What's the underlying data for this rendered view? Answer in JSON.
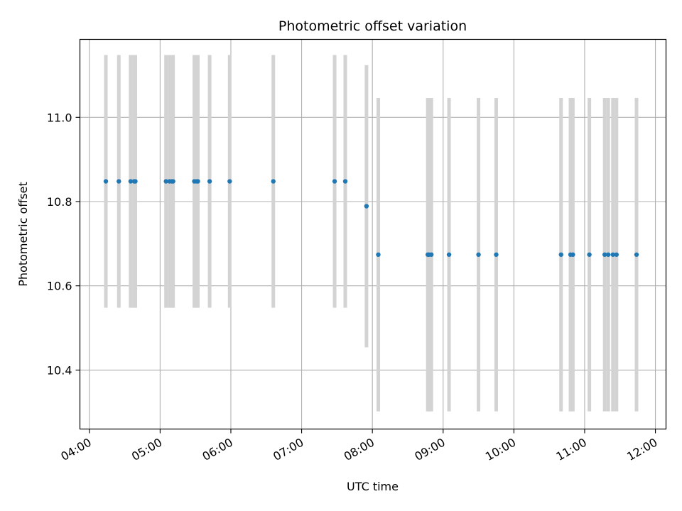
{
  "chart_data": {
    "type": "scatter",
    "title": "Photometric offset variation",
    "xlabel": "UTC time",
    "ylabel": "Photometric offset",
    "x_ticks": [
      "04:00",
      "05:00",
      "06:00",
      "07:00",
      "08:00",
      "09:00",
      "10:00",
      "11:00",
      "12:00"
    ],
    "y_ticks": [
      "10.4",
      "10.6",
      "10.8",
      "11.0"
    ],
    "xlim": [
      "03:52",
      "12:09"
    ],
    "ylim": [
      10.26,
      11.185
    ],
    "grid": true,
    "colors": {
      "points": "#1f77b4",
      "error_bars": "#d3d3d3",
      "grid": "#b0b0b0"
    },
    "points": [
      {
        "x": "04:14",
        "y": 10.848,
        "err": 0.3
      },
      {
        "x": "04:25",
        "y": 10.848,
        "err": 0.3
      },
      {
        "x": "04:35",
        "y": 10.848,
        "err": 0.3
      },
      {
        "x": "04:38",
        "y": 10.848,
        "err": 0.3
      },
      {
        "x": "04:39",
        "y": 10.848,
        "err": 0.3
      },
      {
        "x": "05:05",
        "y": 10.848,
        "err": 0.3
      },
      {
        "x": "05:08",
        "y": 10.848,
        "err": 0.3
      },
      {
        "x": "05:10",
        "y": 10.848,
        "err": 0.3
      },
      {
        "x": "05:11",
        "y": 10.848,
        "err": 0.3
      },
      {
        "x": "05:29",
        "y": 10.848,
        "err": 0.3
      },
      {
        "x": "05:31",
        "y": 10.848,
        "err": 0.3
      },
      {
        "x": "05:32",
        "y": 10.848,
        "err": 0.3
      },
      {
        "x": "05:42",
        "y": 10.848,
        "err": 0.3
      },
      {
        "x": "05:59",
        "y": 10.848,
        "err": 0.3
      },
      {
        "x": "06:36",
        "y": 10.848,
        "err": 0.3
      },
      {
        "x": "07:28",
        "y": 10.848,
        "err": 0.3
      },
      {
        "x": "07:37",
        "y": 10.848,
        "err": 0.3
      },
      {
        "x": "07:55",
        "y": 10.789,
        "err": 0.335
      },
      {
        "x": "08:05",
        "y": 10.674,
        "err": 0.372
      },
      {
        "x": "08:47",
        "y": 10.674,
        "err": 0.372
      },
      {
        "x": "08:48",
        "y": 10.674,
        "err": 0.372
      },
      {
        "x": "08:50",
        "y": 10.674,
        "err": 0.372
      },
      {
        "x": "09:05",
        "y": 10.674,
        "err": 0.372
      },
      {
        "x": "09:30",
        "y": 10.674,
        "err": 0.372
      },
      {
        "x": "09:45",
        "y": 10.674,
        "err": 0.372
      },
      {
        "x": "10:40",
        "y": 10.674,
        "err": 0.372
      },
      {
        "x": "10:48",
        "y": 10.674,
        "err": 0.372
      },
      {
        "x": "10:50",
        "y": 10.674,
        "err": 0.372
      },
      {
        "x": "11:04",
        "y": 10.674,
        "err": 0.372
      },
      {
        "x": "11:17",
        "y": 10.674,
        "err": 0.372
      },
      {
        "x": "11:20",
        "y": 10.674,
        "err": 0.372
      },
      {
        "x": "11:24",
        "y": 10.674,
        "err": 0.372
      },
      {
        "x": "11:27",
        "y": 10.674,
        "err": 0.372
      },
      {
        "x": "11:44",
        "y": 10.674,
        "err": 0.372
      }
    ]
  }
}
